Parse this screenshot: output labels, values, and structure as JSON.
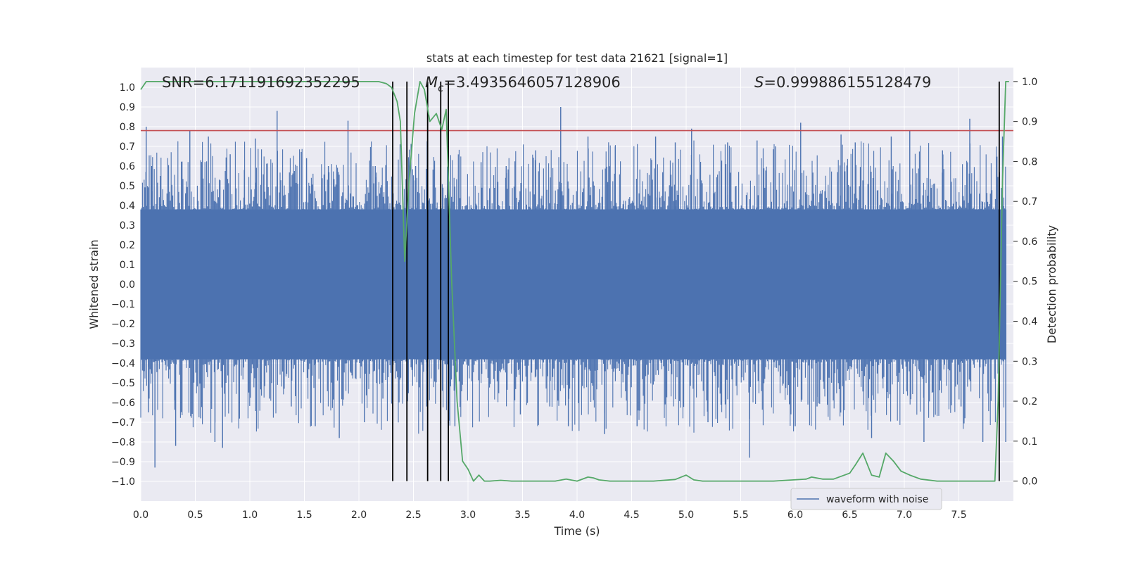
{
  "chart_data": {
    "type": "line",
    "title": "stats at each timestep for test data 21621 [signal=1]",
    "xlabel": "Time (s)",
    "ylabel": "Whitened strain",
    "y2label": "Detection probability",
    "xlim": [
      0.0,
      8.0
    ],
    "ylim": [
      -1.1,
      1.1
    ],
    "y2lim": [
      -0.05,
      1.035
    ],
    "xticks": [
      "0.0",
      "0.5",
      "1.0",
      "1.5",
      "2.0",
      "2.5",
      "3.0",
      "3.5",
      "4.0",
      "4.5",
      "5.0",
      "5.5",
      "6.0",
      "6.5",
      "7.0",
      "7.5"
    ],
    "yticks": [
      "1.0",
      "0.9",
      "0.8",
      "0.7",
      "0.6",
      "0.5",
      "0.4",
      "0.3",
      "0.2",
      "0.1",
      "0.0",
      "−0.1",
      "−0.2",
      "−0.3",
      "−0.4",
      "−0.5",
      "−0.6",
      "−0.7",
      "−0.8",
      "−0.9",
      "−1.0"
    ],
    "y2ticks": [
      "1.0",
      "0.9",
      "0.8",
      "0.7",
      "0.6",
      "0.5",
      "0.4",
      "0.3",
      "0.2",
      "0.1",
      "0.0"
    ],
    "annotations": {
      "snr": "SNR=6.171191692352295",
      "mc_symbol": "M",
      "mc_subscript": "c",
      "mc_value": "=3.4935646057128906",
      "s_symbol": "S",
      "s_value": "=0.999886155128479"
    },
    "threshold_line": {
      "value": 0.78,
      "color": "#c44e52"
    },
    "vertical_lines": {
      "x": [
        2.31,
        2.44,
        2.63,
        2.75,
        2.82,
        7.87
      ],
      "color": "#000000"
    },
    "series": [
      {
        "name": "waveform with noise",
        "color": "#4c72b0",
        "axis": "left",
        "core_amplitude": [
          -0.38,
          0.38
        ],
        "envelope": {
          "max": 0.9,
          "min": -0.93
        },
        "spikes": [
          [
            0.05,
            0.8
          ],
          [
            0.07,
            -0.65
          ],
          [
            0.1,
            0.6
          ],
          [
            0.13,
            -0.93
          ],
          [
            0.18,
            0.55
          ],
          [
            0.32,
            -0.82
          ],
          [
            0.45,
            0.78
          ],
          [
            0.55,
            -0.68
          ],
          [
            0.62,
            0.75
          ],
          [
            0.68,
            -0.8
          ],
          [
            0.75,
            -0.83
          ],
          [
            0.82,
            0.66
          ],
          [
            0.95,
            0.58
          ],
          [
            1.05,
            0.74
          ],
          [
            1.18,
            -0.58
          ],
          [
            1.25,
            0.88
          ],
          [
            1.38,
            -0.62
          ],
          [
            1.52,
            0.64
          ],
          [
            1.6,
            -0.72
          ],
          [
            1.72,
            0.6
          ],
          [
            1.82,
            -0.78
          ],
          [
            1.9,
            0.83
          ],
          [
            2.05,
            -0.7
          ],
          [
            2.15,
            0.6
          ],
          [
            2.22,
            -0.58
          ],
          [
            2.52,
            0.6
          ],
          [
            2.62,
            -0.62
          ],
          [
            2.88,
            -0.72
          ],
          [
            3.12,
            0.62
          ],
          [
            3.35,
            0.6
          ],
          [
            3.48,
            -0.66
          ],
          [
            3.62,
            0.68
          ],
          [
            3.75,
            -0.62
          ],
          [
            3.85,
            0.9
          ],
          [
            3.92,
            -0.72
          ],
          [
            4.1,
            0.75
          ],
          [
            4.25,
            -0.76
          ],
          [
            4.35,
            0.7
          ],
          [
            4.55,
            -0.72
          ],
          [
            4.72,
            0.75
          ],
          [
            4.9,
            0.72
          ],
          [
            5.05,
            0.79
          ],
          [
            5.2,
            -0.7
          ],
          [
            5.38,
            0.72
          ],
          [
            5.58,
            -0.88
          ],
          [
            5.65,
            0.73
          ],
          [
            5.82,
            0.7
          ],
          [
            6.0,
            -0.72
          ],
          [
            6.05,
            0.82
          ],
          [
            6.2,
            -0.62
          ],
          [
            6.42,
            0.76
          ],
          [
            6.55,
            0.72
          ],
          [
            6.7,
            -0.78
          ],
          [
            6.88,
            0.75
          ],
          [
            7.05,
            0.78
          ],
          [
            7.18,
            -0.8
          ],
          [
            7.35,
            0.68
          ],
          [
            7.52,
            -0.62
          ],
          [
            7.6,
            0.84
          ],
          [
            7.72,
            -0.8
          ],
          [
            7.9,
            0.75
          ],
          [
            7.93,
            -0.8
          ]
        ]
      },
      {
        "name": "detection probability",
        "color": "#55a868",
        "axis": "right",
        "x": [
          0.0,
          0.05,
          0.1,
          0.3,
          0.6,
          1.0,
          1.5,
          2.0,
          2.18,
          2.25,
          2.3,
          2.35,
          2.38,
          2.42,
          2.46,
          2.51,
          2.56,
          2.6,
          2.65,
          2.71,
          2.76,
          2.8,
          2.85,
          2.9,
          2.95,
          3.0,
          3.05,
          3.1,
          3.15,
          3.2,
          3.3,
          3.4,
          3.6,
          3.8,
          3.9,
          4.0,
          4.1,
          4.15,
          4.2,
          4.3,
          4.5,
          4.7,
          4.9,
          5.0,
          5.07,
          5.15,
          5.3,
          5.5,
          5.8,
          6.1,
          6.15,
          6.25,
          6.35,
          6.5,
          6.55,
          6.62,
          6.7,
          6.77,
          6.83,
          6.9,
          6.97,
          7.05,
          7.15,
          7.3,
          7.5,
          7.7,
          7.83,
          7.86,
          7.9,
          7.93,
          7.96
        ],
        "y": [
          0.98,
          1.0,
          1.0,
          1.0,
          1.0,
          1.0,
          1.0,
          1.0,
          1.0,
          0.995,
          0.985,
          0.95,
          0.9,
          0.55,
          0.75,
          0.92,
          1.0,
          0.98,
          0.9,
          0.92,
          0.88,
          0.93,
          0.5,
          0.2,
          0.05,
          0.03,
          0.0,
          0.015,
          0.0,
          0.0,
          0.002,
          0.0,
          0.0,
          0.0,
          0.005,
          0.0,
          0.01,
          0.008,
          0.003,
          0.0,
          0.0,
          0.0,
          0.004,
          0.015,
          0.003,
          0.0,
          0.0,
          0.0,
          0.0,
          0.005,
          0.01,
          0.005,
          0.005,
          0.02,
          0.04,
          0.07,
          0.015,
          0.01,
          0.07,
          0.05,
          0.025,
          0.015,
          0.005,
          0.0,
          0.0,
          0.0,
          0.0,
          0.2,
          0.75,
          1.0,
          1.0
        ]
      }
    ],
    "legend": {
      "entries": [
        "waveform with noise"
      ],
      "placement": "lower-right"
    }
  }
}
